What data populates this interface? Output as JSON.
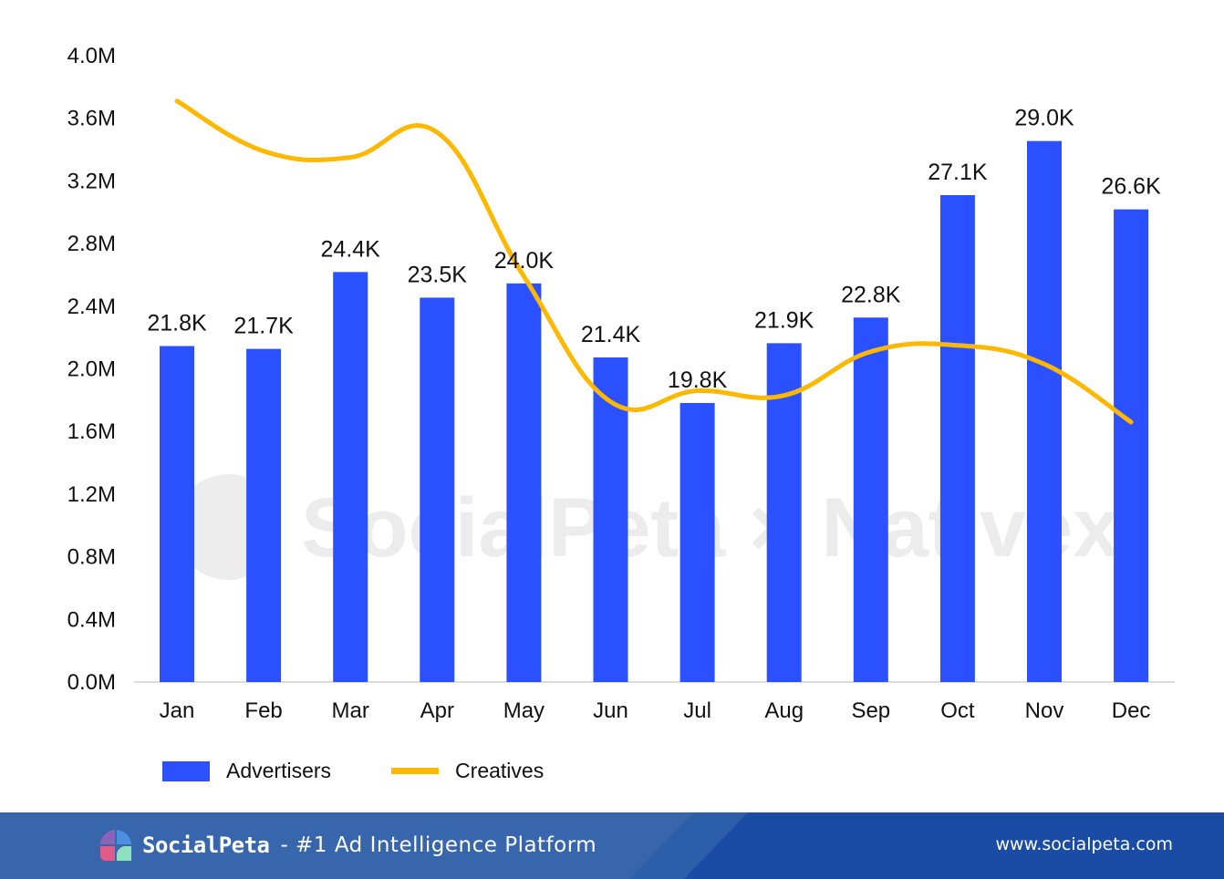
{
  "chart_data": {
    "type": "bar",
    "title": "",
    "xlabel": "",
    "ylabel": "",
    "categories": [
      "Jan",
      "Feb",
      "Mar",
      "Apr",
      "May",
      "Jun",
      "Jul",
      "Aug",
      "Sep",
      "Oct",
      "Nov",
      "Dec"
    ],
    "ylim": [
      0,
      4.0
    ],
    "y_unit": "M",
    "y_ticks": [
      "0.0M",
      "0.4M",
      "0.8M",
      "1.2M",
      "1.6M",
      "2.0M",
      "2.4M",
      "2.8M",
      "3.2M",
      "3.6M",
      "4.0M"
    ],
    "y_tick_values": [
      0,
      0.4,
      0.8,
      1.2,
      1.6,
      2.0,
      2.4,
      2.8,
      3.2,
      3.6,
      4.0
    ],
    "grid": false,
    "secondary_axis_hidden_range_k": [
      10.0,
      32.0
    ],
    "series": [
      {
        "name": "Advertisers",
        "type": "bar",
        "axis": "secondary",
        "color": "#2b50ff",
        "values": [
          21.8,
          21.7,
          24.4,
          23.5,
          24.0,
          21.4,
          19.8,
          21.9,
          22.8,
          27.1,
          29.0,
          26.6
        ],
        "labels": [
          "21.8K",
          "21.7K",
          "24.4K",
          "23.5K",
          "24.0K",
          "21.4K",
          "19.8K",
          "21.9K",
          "22.8K",
          "27.1K",
          "29.0K",
          "26.6K"
        ]
      },
      {
        "name": "Creatives",
        "type": "line",
        "smooth": true,
        "axis": "primary",
        "color": "#ffb800",
        "values": [
          3.71,
          3.39,
          3.35,
          3.51,
          2.59,
          1.79,
          1.86,
          1.83,
          2.11,
          2.15,
          2.03,
          1.66
        ]
      }
    ],
    "legend": {
      "position": "bottom-left",
      "entries": [
        "Advertisers",
        "Creatives"
      ]
    },
    "watermark": "SocialPeta × Nativex"
  },
  "footer": {
    "brand_name": "SocialPeta",
    "tagline": "- #1 Ad Intelligence Platform",
    "url": "www.socialpeta.com"
  }
}
